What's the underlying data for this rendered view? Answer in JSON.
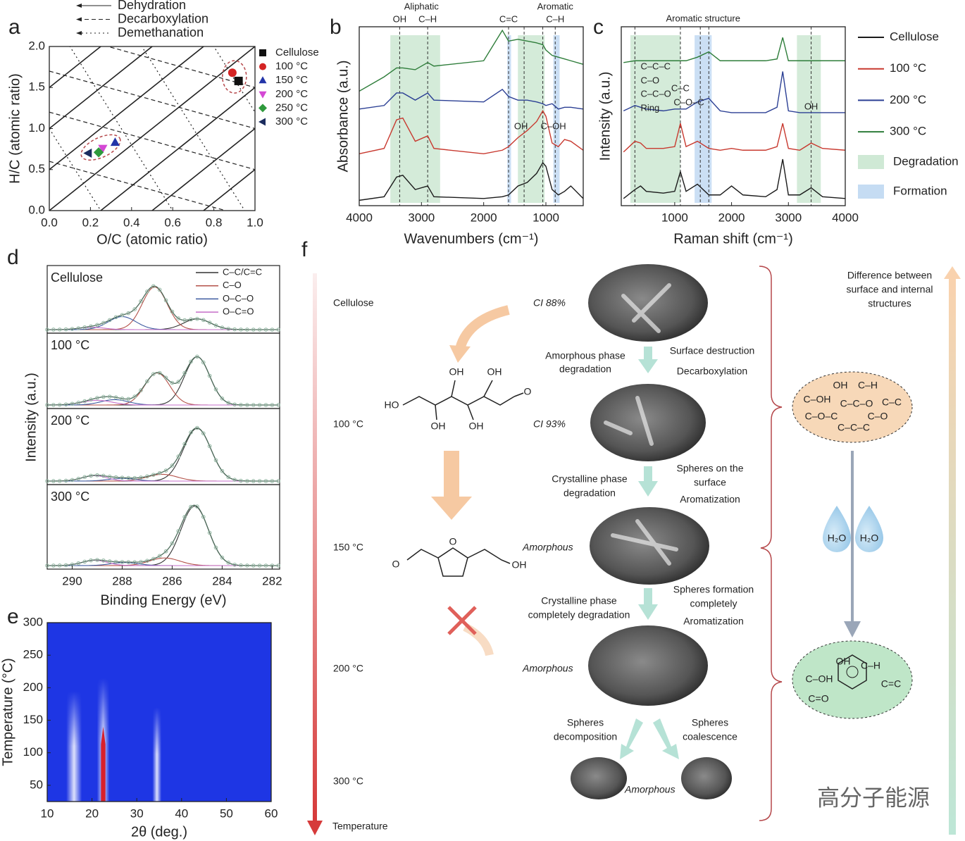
{
  "panel_labels": [
    "a",
    "b",
    "c",
    "d",
    "e",
    "f"
  ],
  "chart_data": [
    {
      "type": "scatter",
      "xlabel": "O/C (atomic ratio)",
      "ylabel": "H/C (atomic ratio)",
      "xlim": [
        0,
        1
      ],
      "ylim": [
        0,
        2
      ],
      "xticks": [
        {
          "value": 0,
          "label": "0.0"
        },
        {
          "value": 0.2,
          "label": "0.2"
        },
        {
          "value": 0.4,
          "label": "0.4"
        },
        {
          "value": 0.6,
          "label": "0.6"
        },
        {
          "value": 0.8,
          "label": "0.8"
        },
        {
          "value": 1,
          "label": "1.0"
        }
      ],
      "yticks": [
        {
          "value": 0,
          "label": "0.0"
        },
        {
          "value": 0.5,
          "label": "0.5"
        },
        {
          "value": 1,
          "label": "1.0"
        },
        {
          "value": 1.5,
          "label": "1.5"
        },
        {
          "value": 2,
          "label": "2.0"
        }
      ],
      "reference_lines": [
        "Dehydration",
        "Decarboxylation",
        "Demethanation"
      ],
      "series": [
        {
          "name": "Cellulose",
          "color": "#111111",
          "marker": "square",
          "x": [
            0.92
          ],
          "values": [
            1.58
          ]
        },
        {
          "name": "100 °C",
          "color": "#d42424",
          "marker": "circle",
          "x": [
            0.89
          ],
          "values": [
            1.68
          ]
        },
        {
          "name": "150 °C",
          "color": "#2335a8",
          "marker": "triangle-up",
          "x": [
            0.32
          ],
          "values": [
            0.83
          ]
        },
        {
          "name": "200 °C",
          "color": "#d448d4",
          "marker": "triangle-down",
          "x": [
            0.26
          ],
          "values": [
            0.76
          ]
        },
        {
          "name": "250 °C",
          "color": "#2f9a3c",
          "marker": "diamond",
          "x": [
            0.24
          ],
          "values": [
            0.71
          ]
        },
        {
          "name": "300 °C",
          "color": "#1b2c5e",
          "marker": "triangle-left",
          "x": [
            0.19
          ],
          "values": [
            0.7
          ]
        }
      ]
    },
    {
      "type": "line",
      "xlabel": "Wavenumbers (cm⁻¹)",
      "ylabel": "Absorbance (a.u.)",
      "xlim": [
        4000,
        400
      ],
      "ylim": [
        0,
        10
      ],
      "xticks": [
        4000,
        3000,
        2000,
        1000
      ],
      "x": [
        4000,
        3600,
        3400,
        3300,
        3100,
        2900,
        2800,
        2000,
        1700,
        1600,
        1450,
        1300,
        1150,
        1050,
        1000,
        900,
        800,
        700,
        600,
        400
      ],
      "regions": [
        {
          "from": 3500,
          "to": 2700,
          "color": "#cfe9d5"
        },
        {
          "from": 1620,
          "to": 1560,
          "color": "#c5dcf3"
        },
        {
          "from": 880,
          "to": 780,
          "color": "#c5dcf3"
        },
        {
          "from": 1450,
          "to": 1020,
          "color": "#cfe9d5"
        }
      ],
      "marker_lines": [
        3350,
        2900,
        1600,
        850,
        1350,
        1050
      ],
      "annotations": [
        {
          "text": "Aliphatic",
          "x": 3000
        },
        {
          "text": "Aromatic",
          "x": 850
        },
        {
          "text": "OH",
          "x": 3350
        },
        {
          "text": "C–H",
          "x": 2900
        },
        {
          "text": "C=C",
          "x": 1600
        },
        {
          "text": "C–H",
          "x": 850
        },
        {
          "text": "OH",
          "x": 1400
        },
        {
          "text": "C–OH",
          "x": 880
        }
      ],
      "series": [
        {
          "color": "#1a1a1a",
          "values": [
            0.3,
            0.5,
            1.6,
            1.7,
            0.9,
            1.1,
            0.5,
            0.4,
            0.5,
            0.6,
            1.1,
            1.3,
            1.8,
            2.4,
            2.2,
            0.9,
            0.6,
            0.8,
            1.1,
            0.4
          ]
        },
        {
          "color": "#c8392f",
          "values": [
            2.9,
            3.2,
            4.8,
            4.9,
            3.6,
            3.9,
            3.2,
            2.9,
            3.1,
            3.3,
            3.8,
            4.2,
            4.7,
            5.3,
            5.0,
            3.5,
            3.3,
            3.7,
            3.6,
            3.1
          ]
        },
        {
          "color": "#2b3f94",
          "values": [
            5.4,
            5.6,
            6.3,
            6.3,
            5.9,
            6.3,
            5.9,
            5.8,
            6.5,
            6.1,
            5.9,
            5.9,
            5.8,
            5.7,
            5.6,
            5.7,
            5.4,
            5.5,
            5.5,
            5.4
          ]
        },
        {
          "color": "#2e7d3a",
          "values": [
            6.4,
            7.2,
            7.7,
            7.7,
            7.6,
            8.0,
            7.8,
            8.1,
            9.8,
            9.2,
            9.3,
            9.2,
            9.1,
            9.0,
            8.7,
            8.4,
            8.3,
            8.2,
            8.1,
            7.9
          ]
        }
      ]
    },
    {
      "type": "line",
      "xlabel": "Raman shift (cm⁻¹)",
      "ylabel": "Intensity (a.u.)",
      "xlim": [
        60,
        4000
      ],
      "ylim": [
        0,
        10
      ],
      "xticks": [
        1000,
        2000,
        3000,
        4000
      ],
      "x": [
        100,
        300,
        400,
        500,
        800,
        1000,
        1100,
        1200,
        1400,
        1600,
        1800,
        2000,
        2200,
        2600,
        2800,
        2900,
        3000,
        3200,
        3400,
        3600,
        4000
      ],
      "regions": [
        {
          "from": 220,
          "to": 1100,
          "color": "#cfe9d5"
        },
        {
          "from": 3150,
          "to": 3570,
          "color": "#cfe9d5"
        },
        {
          "from": 1350,
          "to": 1650,
          "color": "#c5dcf3"
        }
      ],
      "marker_lines": [
        300,
        1100,
        1450,
        1600,
        3400
      ],
      "annotations": [
        {
          "text": "Aromatic structure",
          "x": 1500
        },
        {
          "text": "C–C–C",
          "x": 400
        },
        {
          "text": "C–O",
          "x": 400
        },
        {
          "text": "C–C–O",
          "x": 400
        },
        {
          "text": "Ring",
          "x": 400
        },
        {
          "text": "C–C",
          "x": 1100
        },
        {
          "text": "C–O–C",
          "x": 1250
        },
        {
          "text": "OH",
          "x": 3400
        }
      ],
      "legend_regions": [
        {
          "name": "Degradation",
          "color": "#cfe9d5"
        },
        {
          "name": "Formation",
          "color": "#c5dcf3"
        }
      ],
      "series": [
        {
          "name": "Cellulose",
          "color": "#1a1a1a",
          "values": [
            0.4,
            0.9,
            1.1,
            0.8,
            0.7,
            0.8,
            1.9,
            0.8,
            1.2,
            0.6,
            0.6,
            1.1,
            0.6,
            0.5,
            0.9,
            2.6,
            0.6,
            0.6,
            1.0,
            0.5,
            0.4
          ]
        },
        {
          "name": "100 °C",
          "color": "#c8392f",
          "values": [
            3.0,
            3.6,
            3.5,
            3.2,
            3.2,
            3.3,
            4.6,
            3.3,
            3.6,
            3.2,
            3.1,
            3.2,
            3.1,
            3.1,
            3.3,
            4.6,
            3.2,
            3.1,
            3.5,
            3.2,
            3.1
          ]
        },
        {
          "name": "200 °C",
          "color": "#2b3f94",
          "values": [
            5.3,
            5.6,
            5.5,
            5.4,
            5.3,
            5.4,
            5.4,
            5.4,
            5.8,
            6.0,
            5.3,
            5.2,
            5.2,
            5.2,
            5.5,
            7.5,
            5.3,
            5.2,
            5.2,
            5.2,
            5.2
          ]
        },
        {
          "name": "300 °C",
          "color": "#2e7d3a",
          "values": [
            8.0,
            8.1,
            8.1,
            8.1,
            8.1,
            8.1,
            8.1,
            8.1,
            8.3,
            8.6,
            8.1,
            8.1,
            8.1,
            8.1,
            8.2,
            9.4,
            8.1,
            8.1,
            8.1,
            8.1,
            8.1
          ]
        }
      ]
    },
    {
      "type": "line",
      "xlabel": "Binding Energy (eV)",
      "ylabel": "Intensity (a.u.)",
      "xlim": [
        291,
        281.7
      ],
      "xticks": [
        290,
        288,
        286,
        284,
        282
      ],
      "components": [
        {
          "name": "C–C/C=C",
          "color": "#333333"
        },
        {
          "name": "C–O",
          "color": "#b4524a"
        },
        {
          "name": "O–C–O",
          "color": "#3d5aa0"
        },
        {
          "name": "O–C=O",
          "color": "#c46ec8"
        }
      ],
      "panels": [
        {
          "label": "Cellulose",
          "peaks": [
            {
              "center": 285,
              "height": 0.18,
              "width": 0.55
            },
            {
              "center": 286.7,
              "height": 0.72,
              "width": 0.5
            },
            {
              "center": 288,
              "height": 0.22,
              "width": 0.55
            },
            {
              "center": 289.2,
              "height": 0.04,
              "width": 0.5
            }
          ]
        },
        {
          "label": "100 °C",
          "peaks": [
            {
              "center": 285,
              "height": 0.72,
              "width": 0.5
            },
            {
              "center": 286.6,
              "height": 0.48,
              "width": 0.5
            },
            {
              "center": 288.3,
              "height": 0.08,
              "width": 0.55
            },
            {
              "center": 289,
              "height": 0.07,
              "width": 0.6
            }
          ]
        },
        {
          "label": "200 °C",
          "peaks": [
            {
              "center": 285,
              "height": 0.78,
              "width": 0.55
            },
            {
              "center": 286.4,
              "height": 0.1,
              "width": 0.6
            },
            {
              "center": 288,
              "height": 0.04,
              "width": 0.55
            },
            {
              "center": 289.1,
              "height": 0.08,
              "width": 0.5
            }
          ]
        },
        {
          "label": "300 °C",
          "peaks": [
            {
              "center": 285.1,
              "height": 0.78,
              "width": 0.55
            },
            {
              "center": 286.3,
              "height": 0.1,
              "width": 0.6
            },
            {
              "center": 287.9,
              "height": 0.04,
              "width": 0.55
            },
            {
              "center": 289.1,
              "height": 0.07,
              "width": 0.5
            }
          ]
        }
      ]
    },
    {
      "type": "heatmap",
      "xlabel": "2θ (deg.)",
      "ylabel": "Temperature (°C)",
      "xlim": [
        10,
        60
      ],
      "ylim": [
        25,
        300
      ],
      "xticks": [
        10,
        20,
        30,
        40,
        50,
        60
      ],
      "yticks": [
        50,
        100,
        150,
        200,
        250,
        300
      ],
      "background": "#1e36e4",
      "streaks": [
        {
          "position": 16,
          "width": 3.5,
          "top": 195
        },
        {
          "position": 22.5,
          "width": 2.8,
          "top": 215
        },
        {
          "position": 34.5,
          "width": 2,
          "top": 170
        }
      ],
      "core": {
        "position": 22.5,
        "width": 1,
        "top": 140,
        "color": "#d8202c"
      }
    }
  ],
  "diagram": {
    "stages": [
      "Cellulose",
      "100 °C",
      "150 °C",
      "200 °C",
      "300 °C"
    ],
    "temperature": "Temperature",
    "morphology": [
      "CI 88%",
      "CI 93%",
      "Amorphous",
      "Amorphous",
      "Amorphous"
    ],
    "phase_changes": [
      [
        "Amorphous phase",
        "degradation"
      ],
      [
        "Crystalline phase",
        "degradation"
      ],
      [
        "Crystalline phase",
        "completely degradation"
      ],
      [
        "Spheres",
        "decomposition"
      ]
    ],
    "surface_changes": [
      [
        "Surface destruction",
        "Decarboxylation"
      ],
      [
        "Spheres on the",
        "surface",
        "Aromatization"
      ],
      [
        "Spheres formation",
        "completely",
        "Aromatization"
      ],
      [
        "Spheres",
        "coalescence"
      ]
    ],
    "difference": [
      "Difference between",
      "surface and internal",
      "structures"
    ],
    "surface_groups": [
      "OH",
      "C–H",
      "C–OH",
      "C–C–O",
      "C–C",
      "C–O–C",
      "C–O",
      "C–C–C"
    ],
    "internal_groups": [
      "OH",
      "C–H",
      "C–OH",
      "C=C",
      "C=O"
    ],
    "water": [
      "H₂O",
      "H₂O"
    ],
    "glucose": [
      "HO",
      "OH",
      "OH",
      "OH",
      "OH",
      "O"
    ],
    "hmf": [
      "O",
      "O",
      "OH"
    ],
    "watermark": "高分子能源"
  }
}
